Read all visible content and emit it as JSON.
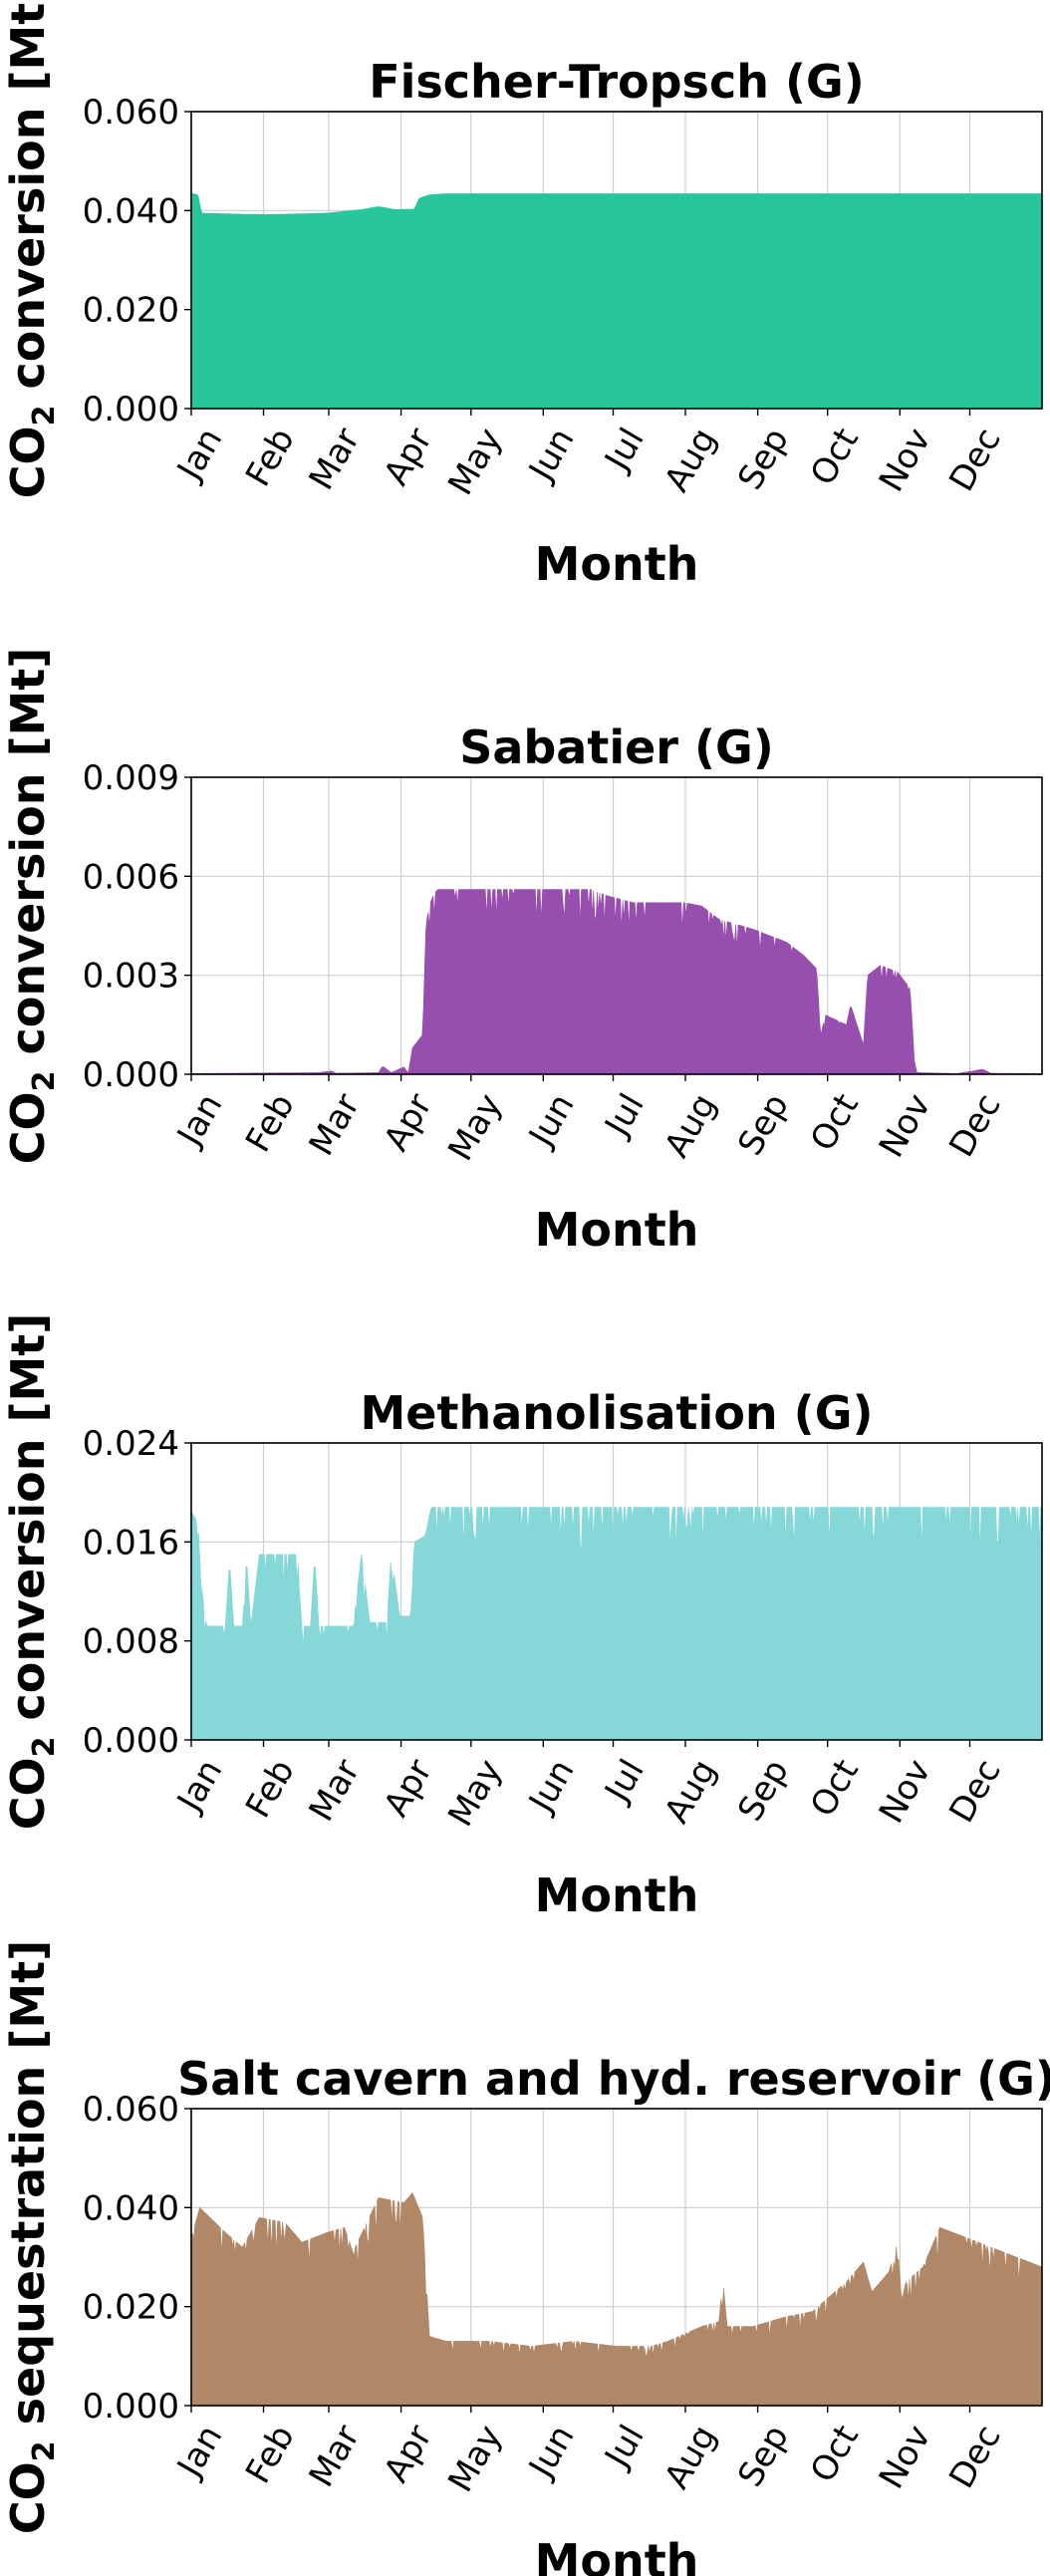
{
  "months": [
    "Jan",
    "Feb",
    "Mar",
    "Apr",
    "May",
    "Jun",
    "Jul",
    "Aug",
    "Sep",
    "Oct",
    "Nov",
    "Dec"
  ],
  "chart_data": [
    {
      "type": "area",
      "title": "Fischer-Tropsch (G)",
      "xlabel": "Month",
      "ylabel_main": "CO",
      "ylabel_sub": "2",
      "ylabel_rest": " conversion [Mt]",
      "color": "#26c59b",
      "ylim": [
        0,
        0.06
      ],
      "yticks": [
        "0.000",
        "0.020",
        "0.040",
        "0.060"
      ],
      "grid": true,
      "profile": [
        [
          0.0,
          0.0435
        ],
        [
          0.008,
          0.0432
        ],
        [
          0.012,
          0.0395
        ],
        [
          0.05,
          0.0393
        ],
        [
          0.09,
          0.0392
        ],
        [
          0.12,
          0.0393
        ],
        [
          0.16,
          0.0395
        ],
        [
          0.2,
          0.0402
        ],
        [
          0.22,
          0.0408
        ],
        [
          0.24,
          0.0402
        ],
        [
          0.262,
          0.0403
        ],
        [
          0.268,
          0.0425
        ],
        [
          0.28,
          0.0432
        ],
        [
          0.3,
          0.0434
        ],
        [
          0.5,
          0.0434
        ],
        [
          0.75,
          0.0434
        ],
        [
          1.0,
          0.0434
        ]
      ]
    },
    {
      "type": "area",
      "title": "Sabatier (G)",
      "xlabel": "Month",
      "ylabel_main": "CO",
      "ylabel_sub": "2",
      "ylabel_rest": " conversion [Mt]",
      "color": "#964fae",
      "ylim": [
        0,
        0.009
      ],
      "yticks": [
        "0.000",
        "0.003",
        "0.006",
        "0.009"
      ],
      "grid": true,
      "profile": [
        [
          0.0,
          2e-05
        ],
        [
          0.15,
          5e-05
        ],
        [
          0.165,
          0.0001
        ],
        [
          0.17,
          3e-05
        ],
        [
          0.22,
          5e-05
        ],
        [
          0.225,
          0.00025
        ],
        [
          0.235,
          5e-05
        ],
        [
          0.25,
          0.00022
        ],
        [
          0.255,
          3e-05
        ],
        [
          0.26,
          0.0008
        ],
        [
          0.272,
          0.0012
        ],
        [
          0.276,
          0.0046
        ],
        [
          0.281,
          0.0052
        ],
        [
          0.286,
          0.0055
        ],
        [
          0.29,
          0.0056
        ],
        [
          0.47,
          0.0056
        ],
        [
          0.49,
          0.0054
        ],
        [
          0.52,
          0.0052
        ],
        [
          0.58,
          0.0052
        ],
        [
          0.6,
          0.0051
        ],
        [
          0.62,
          0.0047
        ],
        [
          0.66,
          0.0044
        ],
        [
          0.7,
          0.004
        ],
        [
          0.72,
          0.0036
        ],
        [
          0.735,
          0.0032
        ],
        [
          0.74,
          0.0012
        ],
        [
          0.745,
          0.0018
        ],
        [
          0.77,
          0.0015
        ],
        [
          0.775,
          0.0021
        ],
        [
          0.79,
          0.0009
        ],
        [
          0.795,
          0.003
        ],
        [
          0.81,
          0.0033
        ],
        [
          0.83,
          0.0031
        ],
        [
          0.845,
          0.0026
        ],
        [
          0.85,
          0.0004
        ],
        [
          0.853,
          5e-05
        ],
        [
          0.9,
          2e-05
        ],
        [
          0.93,
          0.00015
        ],
        [
          0.94,
          3e-05
        ],
        [
          1.0,
          2e-05
        ]
      ]
    },
    {
      "type": "area",
      "title": "Methanolisation (G)",
      "xlabel": "Month",
      "ylabel_main": "CO",
      "ylabel_sub": "2",
      "ylabel_rest": " conversion [Mt]",
      "color": "#86d7d7",
      "ylim": [
        0,
        0.024
      ],
      "yticks": [
        "0.000",
        "0.008",
        "0.016",
        "0.024"
      ],
      "grid": true,
      "profile": [
        [
          0.0,
          0.0185
        ],
        [
          0.008,
          0.0175
        ],
        [
          0.012,
          0.0125
        ],
        [
          0.018,
          0.0092
        ],
        [
          0.04,
          0.0092
        ],
        [
          0.045,
          0.0145
        ],
        [
          0.05,
          0.0092
        ],
        [
          0.06,
          0.0092
        ],
        [
          0.065,
          0.0148
        ],
        [
          0.07,
          0.0092
        ],
        [
          0.08,
          0.015
        ],
        [
          0.125,
          0.015
        ],
        [
          0.13,
          0.0092
        ],
        [
          0.14,
          0.0092
        ],
        [
          0.145,
          0.0148
        ],
        [
          0.15,
          0.0092
        ],
        [
          0.19,
          0.0092
        ],
        [
          0.2,
          0.015
        ],
        [
          0.21,
          0.0095
        ],
        [
          0.23,
          0.0095
        ],
        [
          0.235,
          0.0152
        ],
        [
          0.245,
          0.01
        ],
        [
          0.258,
          0.01
        ],
        [
          0.262,
          0.016
        ],
        [
          0.275,
          0.0165
        ],
        [
          0.282,
          0.0188
        ],
        [
          0.95,
          0.0188
        ],
        [
          1.0,
          0.0188
        ]
      ]
    },
    {
      "type": "area",
      "title": "Salt cavern and hyd. reservoir (G)",
      "xlabel": "Month",
      "ylabel_main": "CO",
      "ylabel_sub": "2",
      "ylabel_rest": " sequestration [Mt]",
      "color": "#b08868",
      "ylim": [
        0,
        0.06
      ],
      "yticks": [
        "0.000",
        "0.020",
        "0.040",
        "0.060"
      ],
      "grid": true,
      "profile": [
        [
          0.0,
          0.034
        ],
        [
          0.01,
          0.04
        ],
        [
          0.04,
          0.035
        ],
        [
          0.06,
          0.032
        ],
        [
          0.08,
          0.038
        ],
        [
          0.11,
          0.037
        ],
        [
          0.13,
          0.033
        ],
        [
          0.16,
          0.035
        ],
        [
          0.18,
          0.036
        ],
        [
          0.19,
          0.031
        ],
        [
          0.22,
          0.042
        ],
        [
          0.25,
          0.041
        ],
        [
          0.26,
          0.043
        ],
        [
          0.272,
          0.038
        ],
        [
          0.28,
          0.014
        ],
        [
          0.3,
          0.013
        ],
        [
          0.35,
          0.013
        ],
        [
          0.4,
          0.012
        ],
        [
          0.45,
          0.013
        ],
        [
          0.5,
          0.012
        ],
        [
          0.54,
          0.012
        ],
        [
          0.56,
          0.013
        ],
        [
          0.6,
          0.016
        ],
        [
          0.62,
          0.017
        ],
        [
          0.625,
          0.025
        ],
        [
          0.63,
          0.016
        ],
        [
          0.66,
          0.016
        ],
        [
          0.7,
          0.018
        ],
        [
          0.73,
          0.019
        ],
        [
          0.75,
          0.022
        ],
        [
          0.77,
          0.025
        ],
        [
          0.79,
          0.029
        ],
        [
          0.8,
          0.023
        ],
        [
          0.82,
          0.027
        ],
        [
          0.83,
          0.033
        ],
        [
          0.835,
          0.021
        ],
        [
          0.84,
          0.025
        ],
        [
          0.86,
          0.028
        ],
        [
          0.88,
          0.036
        ],
        [
          0.91,
          0.034
        ],
        [
          0.94,
          0.032
        ],
        [
          0.97,
          0.03
        ],
        [
          1.0,
          0.028
        ]
      ]
    }
  ]
}
